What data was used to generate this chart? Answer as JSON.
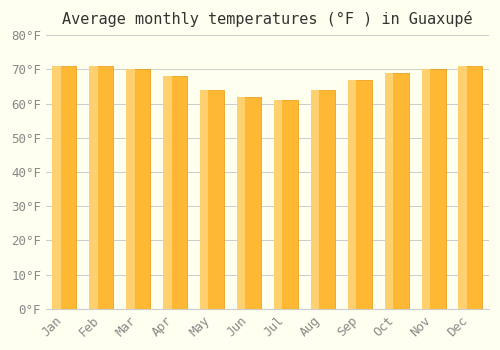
{
  "title": "Average monthly temperatures (°F ) in Guaxupé",
  "months": [
    "Jan",
    "Feb",
    "Mar",
    "Apr",
    "May",
    "Jun",
    "Jul",
    "Aug",
    "Sep",
    "Oct",
    "Nov",
    "Dec"
  ],
  "values": [
    71,
    71,
    70,
    68,
    64,
    62,
    61,
    64,
    67,
    69,
    70,
    71
  ],
  "ylim": [
    0,
    80
  ],
  "yticks": [
    0,
    10,
    20,
    30,
    40,
    50,
    60,
    70,
    80
  ],
  "ytick_labels": [
    "0°F",
    "10°F",
    "20°F",
    "30°F",
    "40°F",
    "50°F",
    "60°F",
    "70°F",
    "80°F"
  ],
  "bar_color_top": "#FFA500",
  "bar_color_bottom": "#FFD080",
  "bar_edge_color": "#E8960A",
  "background_color": "#FFFFF0",
  "grid_color": "#CCCCCC",
  "title_fontsize": 11,
  "tick_fontsize": 9,
  "title_color": "#333333",
  "tick_color": "#888888"
}
